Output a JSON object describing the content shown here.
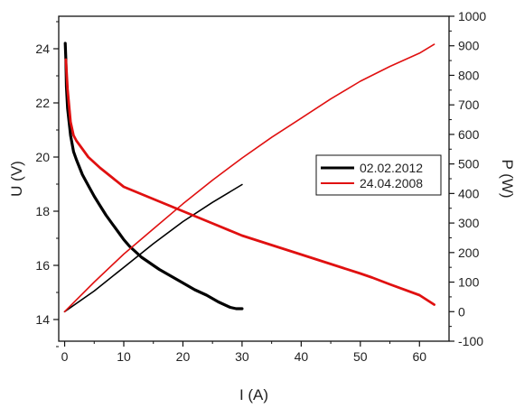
{
  "chart_data": {
    "type": "line",
    "title": "",
    "xlabel": "I (A)",
    "ylabel_left": "U (V)",
    "ylabel_right": "P (W)",
    "xlim": [
      -1,
      65
    ],
    "ylim_left": [
      13.2,
      25.2
    ],
    "ylim_right": [
      -100,
      1000
    ],
    "x_ticks": [
      0,
      10,
      20,
      30,
      40,
      50,
      60
    ],
    "y_left_ticks": [
      14,
      16,
      18,
      20,
      22,
      24
    ],
    "y_right_ticks": [
      -100,
      0,
      100,
      200,
      300,
      400,
      500,
      600,
      700,
      800,
      900,
      1000
    ],
    "grid": false,
    "legend_position": "right",
    "colors": {
      "02.02.2012": "#000000",
      "24.04.2008": "#e01010"
    },
    "series": [
      {
        "name": "02.02.2012",
        "axis": "left",
        "quantity": "U",
        "values": [
          [
            0.1,
            24.2
          ],
          [
            0.2,
            23.6
          ],
          [
            0.3,
            22.6
          ],
          [
            0.5,
            21.8
          ],
          [
            1,
            20.8
          ],
          [
            1.5,
            20.2
          ],
          [
            2,
            19.9
          ],
          [
            3,
            19.35
          ],
          [
            4,
            18.95
          ],
          [
            5,
            18.55
          ],
          [
            6,
            18.2
          ],
          [
            7,
            17.85
          ],
          [
            8,
            17.55
          ],
          [
            9,
            17.25
          ],
          [
            10,
            16.95
          ],
          [
            11,
            16.7
          ],
          [
            12,
            16.5
          ],
          [
            13,
            16.3
          ],
          [
            14,
            16.15
          ],
          [
            15,
            16.0
          ],
          [
            16,
            15.85
          ],
          [
            18,
            15.6
          ],
          [
            20,
            15.35
          ],
          [
            22,
            15.1
          ],
          [
            24,
            14.9
          ],
          [
            26,
            14.65
          ],
          [
            28,
            14.45
          ],
          [
            29,
            14.4
          ],
          [
            30,
            14.4
          ]
        ]
      },
      {
        "name": "02.02.2012",
        "axis": "right",
        "quantity": "P",
        "values": [
          [
            0,
            0
          ],
          [
            5,
            70
          ],
          [
            10,
            150
          ],
          [
            15,
            230
          ],
          [
            20,
            305
          ],
          [
            25,
            370
          ],
          [
            30,
            430
          ]
        ]
      },
      {
        "name": "24.04.2008",
        "axis": "left",
        "quantity": "U",
        "values": [
          [
            0.2,
            23.6
          ],
          [
            0.5,
            22.5
          ],
          [
            1,
            21.3
          ],
          [
            1.5,
            20.8
          ],
          [
            2,
            20.6
          ],
          [
            3,
            20.3
          ],
          [
            4,
            20.0
          ],
          [
            6,
            19.6
          ],
          [
            8,
            19.25
          ],
          [
            10,
            18.9
          ],
          [
            15,
            18.45
          ],
          [
            20,
            18.0
          ],
          [
            25,
            17.55
          ],
          [
            30,
            17.1
          ],
          [
            35,
            16.75
          ],
          [
            40,
            16.4
          ],
          [
            45,
            16.05
          ],
          [
            50,
            15.7
          ],
          [
            52,
            15.55
          ],
          [
            55,
            15.3
          ],
          [
            60,
            14.9
          ],
          [
            62.5,
            14.55
          ]
        ]
      },
      {
        "name": "24.04.2008",
        "axis": "right",
        "quantity": "P",
        "values": [
          [
            0,
            0
          ],
          [
            5,
            100
          ],
          [
            10,
            195
          ],
          [
            15,
            280
          ],
          [
            20,
            365
          ],
          [
            25,
            445
          ],
          [
            30,
            520
          ],
          [
            35,
            590
          ],
          [
            40,
            655
          ],
          [
            45,
            720
          ],
          [
            50,
            780
          ],
          [
            55,
            830
          ],
          [
            60,
            875
          ],
          [
            62.5,
            905
          ]
        ]
      }
    ]
  }
}
